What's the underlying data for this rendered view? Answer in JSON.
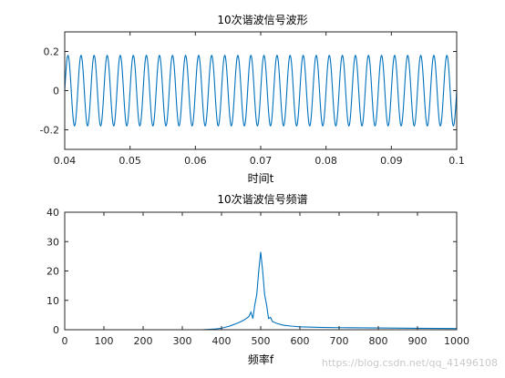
{
  "chart_data": [
    {
      "type": "line",
      "title": "10次谐波信号波形",
      "xlabel": "时间t",
      "ylabel": "",
      "xlim": [
        0.04,
        0.1
      ],
      "ylim": [
        -0.3,
        0.3
      ],
      "xticks": [
        "0.04",
        "0.05",
        "0.06",
        "0.07",
        "0.08",
        "0.09",
        "0.1"
      ],
      "yticks": [
        "-0.2",
        "0",
        "0.2"
      ],
      "series": [
        {
          "amplitude": 0.18,
          "frequency_hz": 500,
          "t_start": 0.04,
          "t_end": 0.1
        }
      ],
      "line_color": "#0072bd",
      "grid": false
    },
    {
      "type": "line",
      "title": "10次谐波信号频谱",
      "xlabel": "频率f",
      "ylabel": "",
      "xlim": [
        0,
        1000
      ],
      "ylim": [
        0,
        40
      ],
      "xticks": [
        "0",
        "100",
        "200",
        "300",
        "400",
        "500",
        "600",
        "700",
        "800",
        "900",
        "1000"
      ],
      "yticks": [
        "0",
        "10",
        "20",
        "30",
        "40"
      ],
      "series": [
        {
          "x": [
            0,
            350,
            380,
            400,
            420,
            440,
            450,
            460,
            470,
            475,
            480,
            485,
            490,
            495,
            500,
            505,
            510,
            515,
            520,
            525,
            530,
            540,
            550,
            560,
            580,
            600,
            650,
            700,
            800,
            900,
            1000
          ],
          "y": [
            0,
            0,
            0.2,
            0.5,
            1.2,
            2.2,
            2.8,
            3.5,
            4.5,
            6,
            3.8,
            8.5,
            12,
            20,
            26.5,
            20,
            12,
            8.5,
            3.8,
            4.2,
            2.8,
            2.2,
            1.8,
            1.5,
            1.2,
            1.0,
            0.8,
            0.7,
            0.6,
            0.5,
            0.4
          ]
        }
      ],
      "line_color": "#0072bd",
      "grid": false
    }
  ],
  "watermark": "https://blog.csdn.net/qq_41496108"
}
